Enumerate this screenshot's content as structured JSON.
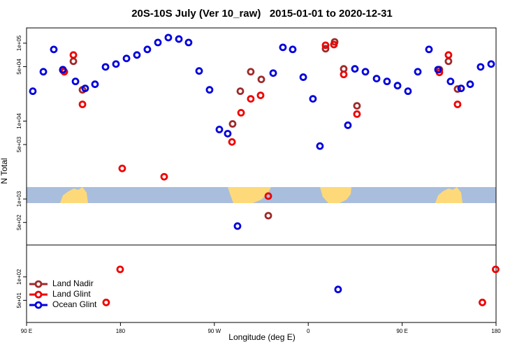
{
  "chart_data": {
    "type": "scatter",
    "title": "20S-10S July (Ver 10_raw)   2015-01-01 to 2020-12-31",
    "x_label": "Longitude (deg E)",
    "y_label": "N Total",
    "log_y": true,
    "legend": "lower left",
    "xlim": [
      90,
      540
    ],
    "ylim": [
      26,
      157000
    ],
    "xticks": [
      {
        "value": 90,
        "label": "90 E"
      },
      {
        "value": 180,
        "label": "180"
      },
      {
        "value": 270,
        "label": "90 W"
      },
      {
        "value": 360,
        "label": "0"
      },
      {
        "value": 450,
        "label": "90 E"
      },
      {
        "value": 540,
        "label": "180"
      }
    ],
    "yticks": [
      {
        "value": 50,
        "label": "5e+01"
      },
      {
        "value": 100,
        "label": "1e+02"
      },
      {
        "value": 500,
        "label": "5e+02"
      },
      {
        "value": 1000,
        "label": "1e+03"
      },
      {
        "value": 5000,
        "label": "5e+03"
      },
      {
        "value": 10000,
        "label": "1e+04"
      },
      {
        "value": 50000,
        "label": "5e+04"
      },
      {
        "value": 100000,
        "label": "1e+05"
      }
    ],
    "series": [
      {
        "name": "Land Nadir",
        "color": "#9e2a2a",
        "x": [
          124.8,
          134.9,
          143.6,
          287.5,
          294.9,
          304.9,
          315.0,
          321.7,
          376.6,
          385.3,
          394.0,
          406.7,
          494.4,
          485.7,
          503.1
        ],
        "values": [
          44900,
          58600,
          25200,
          9200,
          24200,
          43000,
          34300,
          611,
          84900,
          104000,
          46800,
          15700,
          58600,
          45800,
          25800
        ]
      },
      {
        "name": "Land Glint",
        "color": "#ee0000",
        "x": [
          126.2,
          134.9,
          143.6,
          181.7,
          221.9,
          166.3,
          179.7,
          286.9,
          295.6,
          304.9,
          314.3,
          321.7,
          376.6,
          384.6,
          394.0,
          406.7,
          494.4,
          485.7,
          503.1,
          526.9,
          539.6
        ],
        "values": [
          43000,
          70500,
          16400,
          2470,
          1930,
          47,
          125,
          5400,
          12800,
          19300,
          21400,
          1090,
          94000,
          96000,
          39700,
          12300,
          70500,
          42200,
          16400,
          47,
          125
        ]
      },
      {
        "name": "Ocean Glint",
        "color": "#0000dd",
        "x": [
          96.0,
          106.1,
          116.1,
          124.8,
          136.9,
          146.2,
          155.6,
          165.7,
          175.7,
          185.8,
          195.8,
          205.8,
          215.9,
          225.9,
          236.0,
          245.3,
          255.4,
          265.4,
          274.8,
          282.8,
          292.2,
          326.4,
          335.7,
          345.1,
          355.2,
          364.5,
          371.2,
          388.6,
          398.0,
          404.7,
          414.8,
          425.5,
          435.5,
          445.6,
          455.6,
          465.0,
          475.7,
          484.4,
          496.4,
          506.5,
          515.2,
          525.2,
          535.3
        ],
        "values": [
          24200,
          43000,
          83100,
          45800,
          32300,
          26300,
          29700,
          49600,
          54000,
          63700,
          70500,
          83200,
          102000,
          118000,
          113000,
          102000,
          44000,
          25200,
          7800,
          6900,
          449,
          41300,
          88400,
          83200,
          36600,
          19300,
          4780,
          69,
          8840,
          46800,
          43000,
          35100,
          32300,
          28500,
          24200,
          43000,
          83200,
          45800,
          32300,
          26300,
          29700,
          49600,
          54000
        ]
      }
    ]
  }
}
